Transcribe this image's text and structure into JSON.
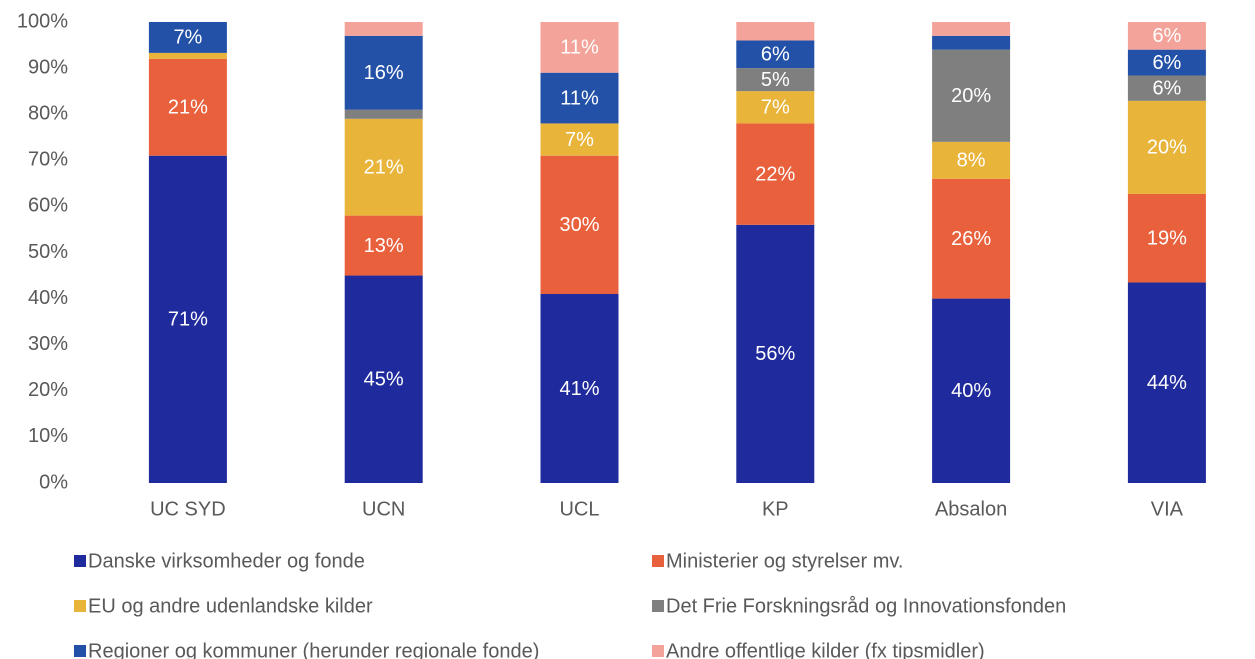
{
  "chart_data": {
    "type": "stacked_bar",
    "categories": [
      "UC SYD",
      "UCN",
      "UCL",
      "KP",
      "Absalon",
      "VIA"
    ],
    "ylim": [
      0,
      100
    ],
    "yticks": [
      {
        "value": 0,
        "label": "0%"
      },
      {
        "value": 10,
        "label": "10%"
      },
      {
        "value": 20,
        "label": "20%"
      },
      {
        "value": 30,
        "label": "30%"
      },
      {
        "value": 40,
        "label": "40%"
      },
      {
        "value": 50,
        "label": "50%"
      },
      {
        "value": 60,
        "label": "60%"
      },
      {
        "value": 70,
        "label": "70%"
      },
      {
        "value": 80,
        "label": "80%"
      },
      {
        "value": 90,
        "label": "90%"
      },
      {
        "value": 100,
        "label": "100%"
      }
    ],
    "series": [
      {
        "name": "Danske virksomheder og fonde",
        "color": "#1f2a9c",
        "values": [
          71,
          45,
          41,
          56,
          40,
          43.5
        ],
        "value_labels": [
          "71%",
          "45%",
          "41%",
          "56%",
          "40%",
          "44%"
        ]
      },
      {
        "name": "Ministerier og styrelser mv.",
        "color": "#e8603c",
        "values": [
          21,
          13,
          30,
          22,
          26,
          19.2
        ],
        "value_labels": [
          "21%",
          "13%",
          "30%",
          "22%",
          "26%",
          "19%"
        ]
      },
      {
        "name": "EU og andre udenlandske kilder",
        "color": "#e9b43a",
        "values": [
          1.3,
          21,
          7,
          7,
          8,
          20.2
        ],
        "value_labels": [
          null,
          "21%",
          "7%",
          "7%",
          "8%",
          "20%"
        ]
      },
      {
        "name": "Det Frie Forskningsråd og Innovationsfonden",
        "color": "#7f7f7f",
        "values": [
          0,
          2,
          0,
          5,
          20,
          5.5
        ],
        "value_labels": [
          null,
          null,
          null,
          "5%",
          "20%",
          "6%"
        ]
      },
      {
        "name": "Regioner og kommuner (herunder regionale fonde)",
        "color": "#2351a8",
        "values": [
          6.7,
          16,
          11,
          6,
          3,
          5.6
        ],
        "value_labels": [
          "7%",
          "16%",
          "11%",
          "6%",
          null,
          "6%"
        ]
      },
      {
        "name": "Andre offentlige kilder (fx tipsmidler)",
        "color": "#f4a39a",
        "values": [
          0,
          3,
          11,
          4,
          3,
          6
        ],
        "value_labels": [
          null,
          null,
          "11%",
          null,
          null,
          "6%"
        ]
      }
    ]
  }
}
